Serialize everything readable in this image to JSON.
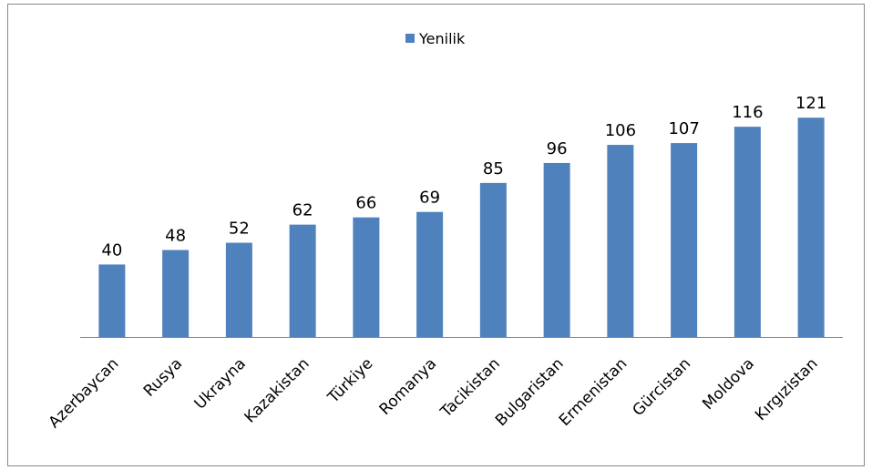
{
  "chart_data": {
    "type": "bar",
    "legend": "top",
    "series": [
      {
        "name": "Yenilik",
        "color": "#4f81bd",
        "values": [
          40,
          48,
          52,
          62,
          66,
          69,
          85,
          96,
          106,
          107,
          116,
          121
        ]
      }
    ],
    "categories": [
      "Azerbaycan",
      "Rusya",
      "Ukrayna",
      "Kazakistan",
      "Türkiye",
      "Romanya",
      "Tacikistan",
      "Bulgaristan",
      "Ermenistan",
      "Gürcistan",
      "Moldova",
      "Kırgızistan"
    ]
  }
}
